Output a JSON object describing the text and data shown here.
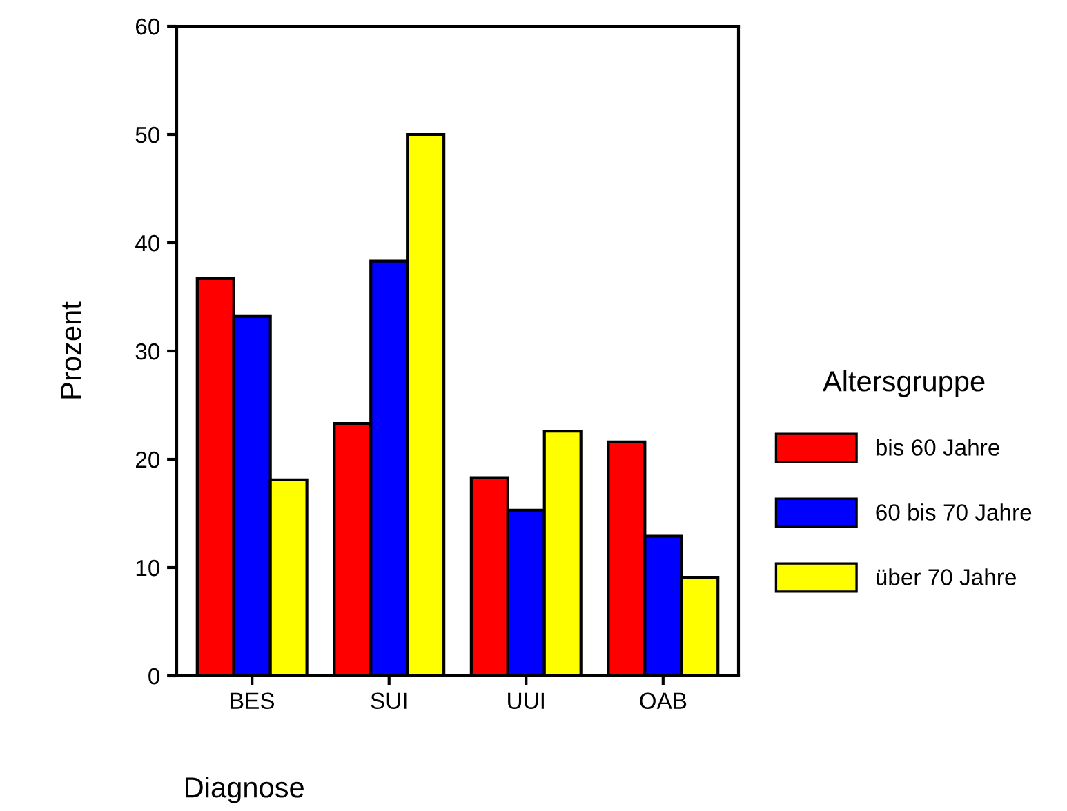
{
  "chart_data": {
    "type": "bar",
    "xlabel": "Diagnose",
    "ylabel": "Prozent",
    "legend_title": "Altersgruppe",
    "legend": "right",
    "categories": [
      "BES",
      "SUI",
      "UUI",
      "OAB"
    ],
    "series": [
      {
        "name": "bis 60 Jahre",
        "color": "#ff0000",
        "values": [
          36.7,
          23.3,
          18.3,
          21.6
        ]
      },
      {
        "name": "60 bis 70 Jahre",
        "color": "#0000ff",
        "values": [
          33.2,
          38.3,
          15.3,
          12.9
        ]
      },
      {
        "name": "über 70 Jahre",
        "color": "#ffff00",
        "values": [
          18.1,
          50.0,
          22.6,
          9.1
        ]
      }
    ],
    "ylim": [
      0,
      60
    ],
    "yticks": [
      0,
      10,
      20,
      30,
      40,
      50,
      60
    ],
    "grid": false
  }
}
